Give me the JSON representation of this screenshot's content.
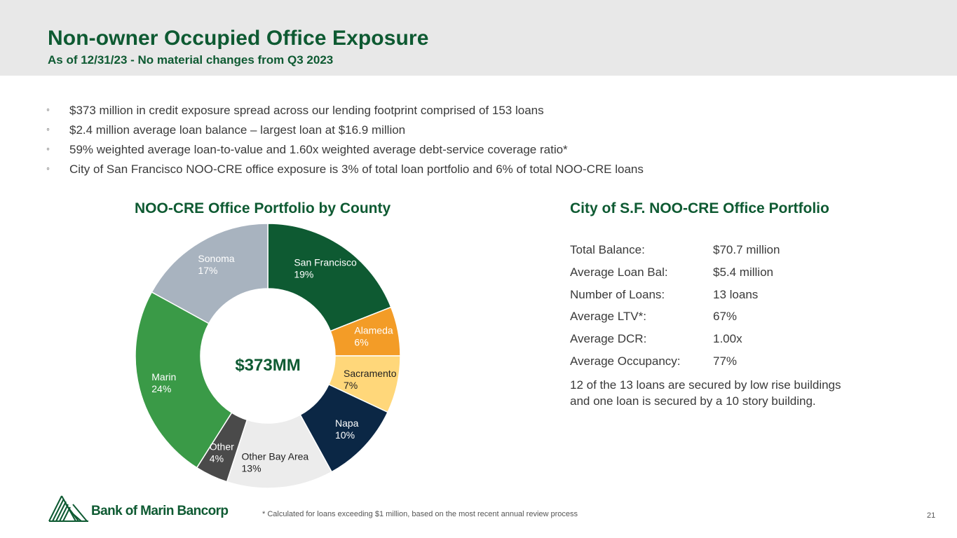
{
  "header": {
    "title": "Non-owner Occupied Office Exposure",
    "subtitle": "As of 12/31/23 - No material changes from Q3 2023"
  },
  "bullets": [
    "$373 million in credit exposure spread across our lending footprint comprised of 153 loans",
    "$2.4 million average loan balance – largest loan at $16.9 million",
    "59% weighted average loan-to-value and 1.60x weighted average debt-service coverage ratio*",
    "City of San Francisco NOO-CRE office exposure is 3% of total loan portfolio and 6% of total NOO-CRE loans"
  ],
  "bullet_marker": "◦",
  "chart_data": {
    "type": "pie",
    "title": "NOO-CRE Office Portfolio by County",
    "center_label": "$373MM",
    "slices": [
      {
        "name": "San Francisco",
        "value": 19,
        "label": "19%",
        "color": "#0e5a32",
        "text_color": "#ffffff"
      },
      {
        "name": "Alameda",
        "value": 6,
        "label": "6%",
        "color": "#f39c27",
        "text_color": "#ffffff"
      },
      {
        "name": "Sacramento",
        "value": 7,
        "label": "7%",
        "color": "#ffd77a",
        "text_color": "#222222"
      },
      {
        "name": "Napa",
        "value": 10,
        "label": "10%",
        "color": "#0b2745",
        "text_color": "#ffffff"
      },
      {
        "name": "Other Bay Area",
        "value": 13,
        "label": "13%",
        "color": "#ececec",
        "text_color": "#222222"
      },
      {
        "name": "Other",
        "value": 4,
        "label": "4%",
        "color": "#4a4a4a",
        "text_color": "#ffffff"
      },
      {
        "name": "Marin",
        "value": 24,
        "label": "24%",
        "color": "#3a9a47",
        "text_color": "#ffffff"
      },
      {
        "name": "Sonoma",
        "value": 17,
        "label": "17%",
        "color": "#a8b3bf",
        "text_color": "#ffffff"
      }
    ]
  },
  "sf_portfolio": {
    "title": "City of S.F. NOO-CRE Office Portfolio",
    "rows": [
      {
        "label": "Total Balance:",
        "value": "$70.7 million"
      },
      {
        "label": "Average Loan Bal:",
        "value": "$5.4 million"
      },
      {
        "label": "Number of Loans:",
        "value": "13 loans"
      },
      {
        "label": "Average LTV*:",
        "value": "67%"
      },
      {
        "label": "Average DCR:",
        "value": "1.00x"
      },
      {
        "label": "Average Occupancy:",
        "value": "77%"
      }
    ],
    "note": "12 of the 13 loans are secured by low rise buildings and one loan is secured by a 10 story building."
  },
  "footer": {
    "logo_text": "Bank of Marin Bancorp",
    "footnote": "* Calculated for loans exceeding $1 million, based on the most recent annual review process",
    "page_number": "21"
  }
}
